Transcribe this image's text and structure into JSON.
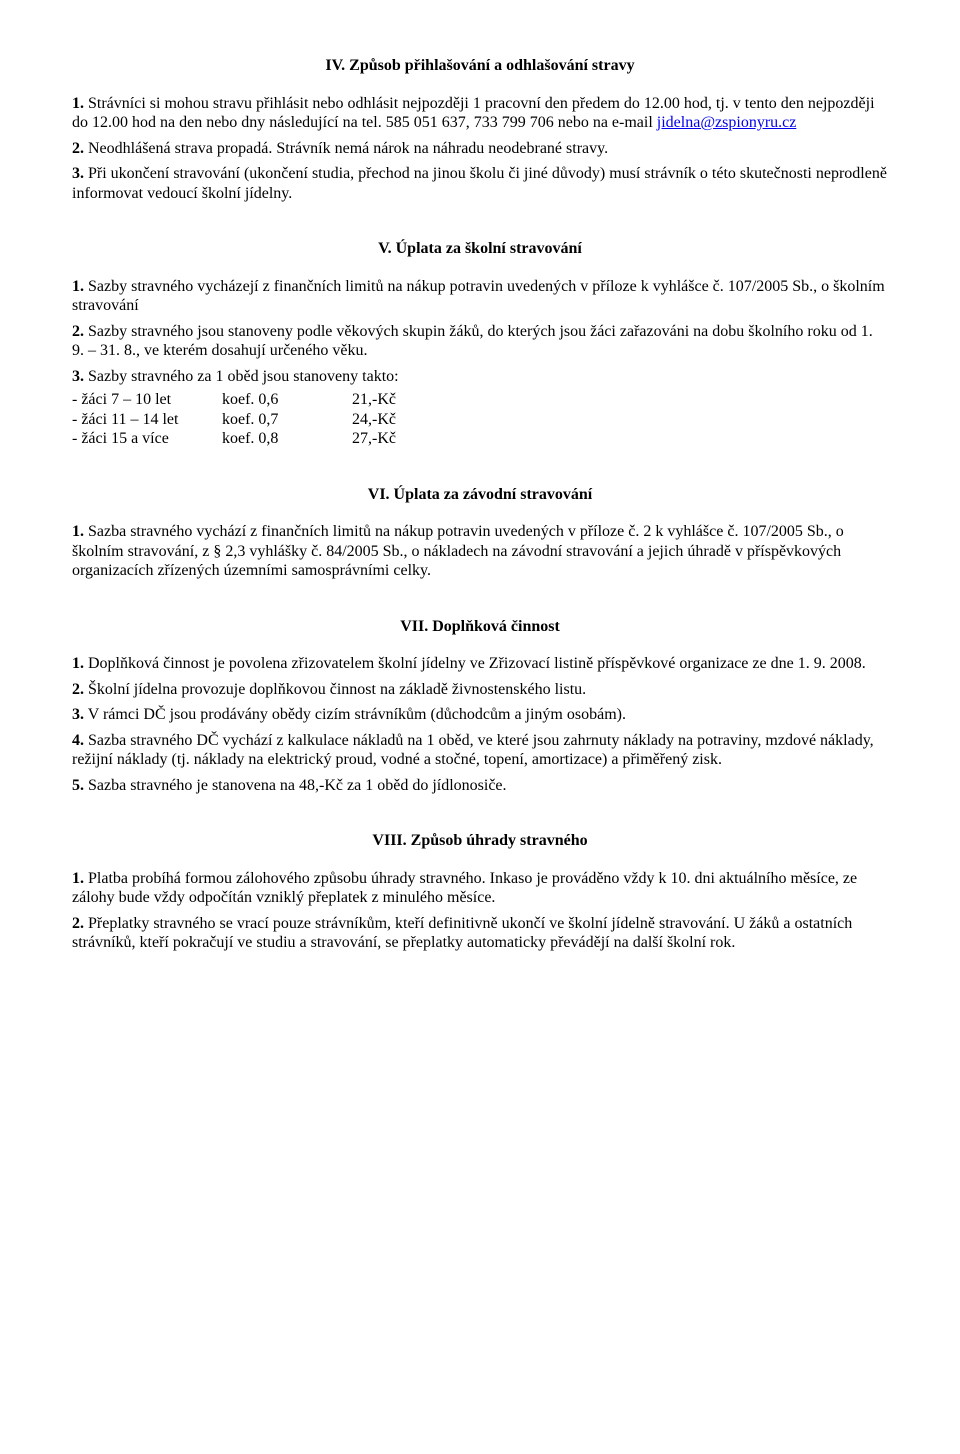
{
  "s4": {
    "heading": "IV. Způsob přihlašování a odhlašování stravy",
    "p1_a": "1.",
    "p1_b": " Strávníci si mohou stravu přihlásit nebo odhlásit nejpozději 1 pracovní den předem do 12.00 hod, tj. v tento den nejpozději do 12.00 hod na den nebo dny následující na tel. 585 051 637, 733 799 706 nebo na e-mail ",
    "p1_link": "jidelna@zspionyru.cz",
    "p2_a": "2.",
    "p2_b": " Neodhlášená strava propadá. Strávník nemá nárok na náhradu neodebrané stravy.",
    "p3_a": "3.",
    "p3_b": " Při ukončení stravování (ukončení studia, přechod na jinou školu či jiné důvody) musí strávník o této skutečnosti neprodleně informovat vedoucí školní jídelny."
  },
  "s5": {
    "heading": "V. Úplata za školní stravování",
    "p1_a": "1.",
    "p1_b": " Sazby stravného vycházejí z finančních limitů na nákup potravin uvedených v příloze k vyhlášce č. 107/2005 Sb., o školním stravování",
    "p2_a": "2.",
    "p2_b": " Sazby stravného jsou stanoveny podle věkových skupin žáků, do kterých jsou žáci zařazováni na dobu školního roku od 1. 9. – 31. 8., ve kterém dosahují určeného věku.",
    "p3_a": "3.",
    "p3_b": " Sazby stravného za 1 oběd jsou stanoveny takto:",
    "rows": [
      {
        "c1": "- žáci 7 – 10 let",
        "c2": "koef. 0,6",
        "c3": "21,-Kč"
      },
      {
        "c1": "- žáci 11 – 14 let",
        "c2": "koef. 0,7",
        "c3": "24,-Kč"
      },
      {
        "c1": "- žáci 15 a více",
        "c2": "koef. 0,8",
        "c3": " 27,-Kč"
      }
    ]
  },
  "s6": {
    "heading": "VI. Úplata za závodní stravování",
    "p1_a": "1.",
    "p1_b": " Sazba stravného vychází z finančních limitů na nákup potravin uvedených v příloze č. 2 k vyhlášce č. 107/2005 Sb., o školním stravování, z § 2,3 vyhlášky č. 84/2005 Sb., o nákladech na závodní stravování a jejich úhradě v příspěvkových organizacích zřízených územními samosprávními celky."
  },
  "s7": {
    "heading": "VII. Doplňková činnost",
    "p1_a": "1.",
    "p1_b": " Doplňková činnost je povolena zřizovatelem školní jídelny ve Zřizovací listině příspěvkové organizace ze dne 1. 9. 2008.",
    "p2_a": "2.",
    "p2_b": " Školní jídelna provozuje doplňkovou činnost na základě živnostenského listu.",
    "p3_a": "3.",
    "p3_b": " V rámci DČ jsou prodávány obědy cizím strávníkům (důchodcům a jiným osobám).",
    "p4_a": "4.",
    "p4_b": " Sazba stravného DČ vychází z kalkulace nákladů na 1 oběd, ve které jsou zahrnuty náklady na potraviny, mzdové náklady, režijní náklady (tj. náklady na elektrický proud, vodné a stočné, topení, amortizace) a přiměřený zisk.",
    "p5_a": "5.",
    "p5_b": " Sazba stravného je stanovena na 48,-Kč za 1 oběd do jídlonosiče."
  },
  "s8": {
    "heading": "VIII. Způsob úhrady stravného",
    "p1_a": "1.",
    "p1_b": " Platba probíhá formou zálohového způsobu úhrady stravného. Inkaso je prováděno vždy k 10. dni aktuálního měsíce, ze zálohy bude vždy odpočítán vzniklý přeplatek z minulého měsíce.",
    "p2_a": "2.",
    "p2_b": " Přeplatky stravného se vrací pouze strávníkům, kteří definitivně ukončí ve školní jídelně stravování. U žáků a ostatních strávníků, kteří pokračují ve studiu a stravování, se přeplatky automaticky převádějí na další školní rok."
  }
}
